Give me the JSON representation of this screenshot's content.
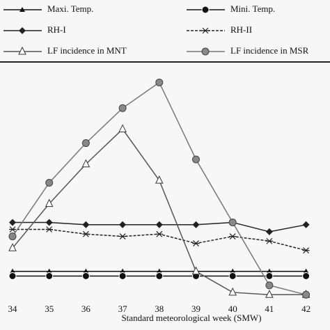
{
  "chart_data": {
    "type": "line",
    "xlabel": "Standard meteorological week (SMW)",
    "categories": [
      "34",
      "35",
      "36",
      "37",
      "38",
      "39",
      "40",
      "41",
      "42"
    ],
    "ylim": [
      0,
      100
    ],
    "series": [
      {
        "name": "Maxi. Temp.",
        "color": "#111111",
        "marker": "triangle",
        "dash": "solid",
        "values": [
          12,
          12,
          12,
          12,
          12,
          12,
          12,
          12,
          12
        ]
      },
      {
        "name": "Mini. Temp.",
        "color": "#111111",
        "marker": "circle",
        "dash": "solid",
        "values": [
          10,
          10,
          10,
          10,
          10,
          10,
          10,
          10,
          10
        ]
      },
      {
        "name": "RH-I",
        "color": "#222222",
        "marker": "diamond",
        "dash": "solid",
        "values": [
          33,
          33,
          32,
          32,
          32,
          32,
          33,
          29,
          32
        ]
      },
      {
        "name": "RH-II",
        "color": "#222222",
        "marker": "asterisk",
        "dash": "dashed",
        "values": [
          30,
          30,
          28,
          27,
          28,
          24,
          27,
          25,
          21
        ]
      },
      {
        "name": "LF incidence in MNT",
        "color": "#555555",
        "marker": "open-triangle",
        "dash": "solid",
        "values": [
          22,
          41,
          58,
          73,
          51,
          12,
          3,
          2,
          2
        ]
      },
      {
        "name": "LF incidence in MSR",
        "color": "#777777",
        "marker": "gray-circle",
        "dash": "solid",
        "values": [
          27,
          50,
          67,
          82,
          93,
          60,
          33,
          6,
          2
        ]
      }
    ]
  }
}
